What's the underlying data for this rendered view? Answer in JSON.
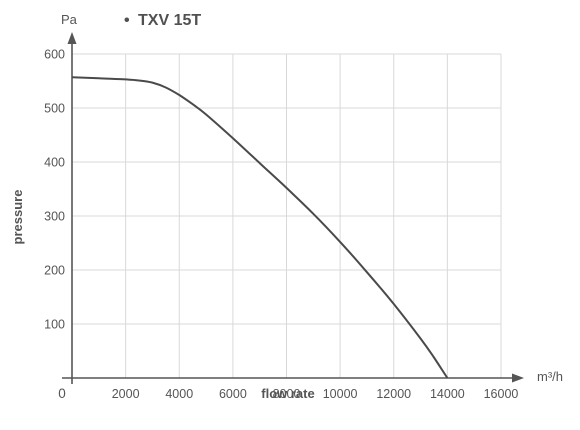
{
  "chart_data": {
    "type": "line",
    "title": "",
    "legend": {
      "marker": "•",
      "entries": [
        "TXV 15T"
      ],
      "placement": "top"
    },
    "xlabel": "flow rate",
    "ylabel": "pressure",
    "x_unit": "m³/h",
    "y_unit": "Pa",
    "xlim": [
      0,
      16000
    ],
    "ylim": [
      0,
      600
    ],
    "x_ticks": [
      "0",
      "2000",
      "4000",
      "6000",
      "8000",
      "10000",
      "12000",
      "14000",
      "16000"
    ],
    "y_ticks": [
      "100",
      "200",
      "300",
      "400",
      "500",
      "600"
    ],
    "grid": true,
    "series": [
      {
        "name": "TXV 15T",
        "color": "#4a4a4a",
        "points": [
          [
            0,
            557
          ],
          [
            1000,
            555
          ],
          [
            2000,
            553
          ],
          [
            2500,
            551
          ],
          [
            3000,
            547
          ],
          [
            3500,
            538
          ],
          [
            4000,
            524
          ],
          [
            4500,
            507
          ],
          [
            5000,
            488
          ],
          [
            6000,
            444
          ],
          [
            7000,
            398
          ],
          [
            8000,
            352
          ],
          [
            9000,
            304
          ],
          [
            10000,
            252
          ],
          [
            11000,
            196
          ],
          [
            12000,
            137
          ],
          [
            13000,
            73
          ],
          [
            13500,
            38
          ],
          [
            14000,
            0
          ]
        ]
      }
    ]
  }
}
